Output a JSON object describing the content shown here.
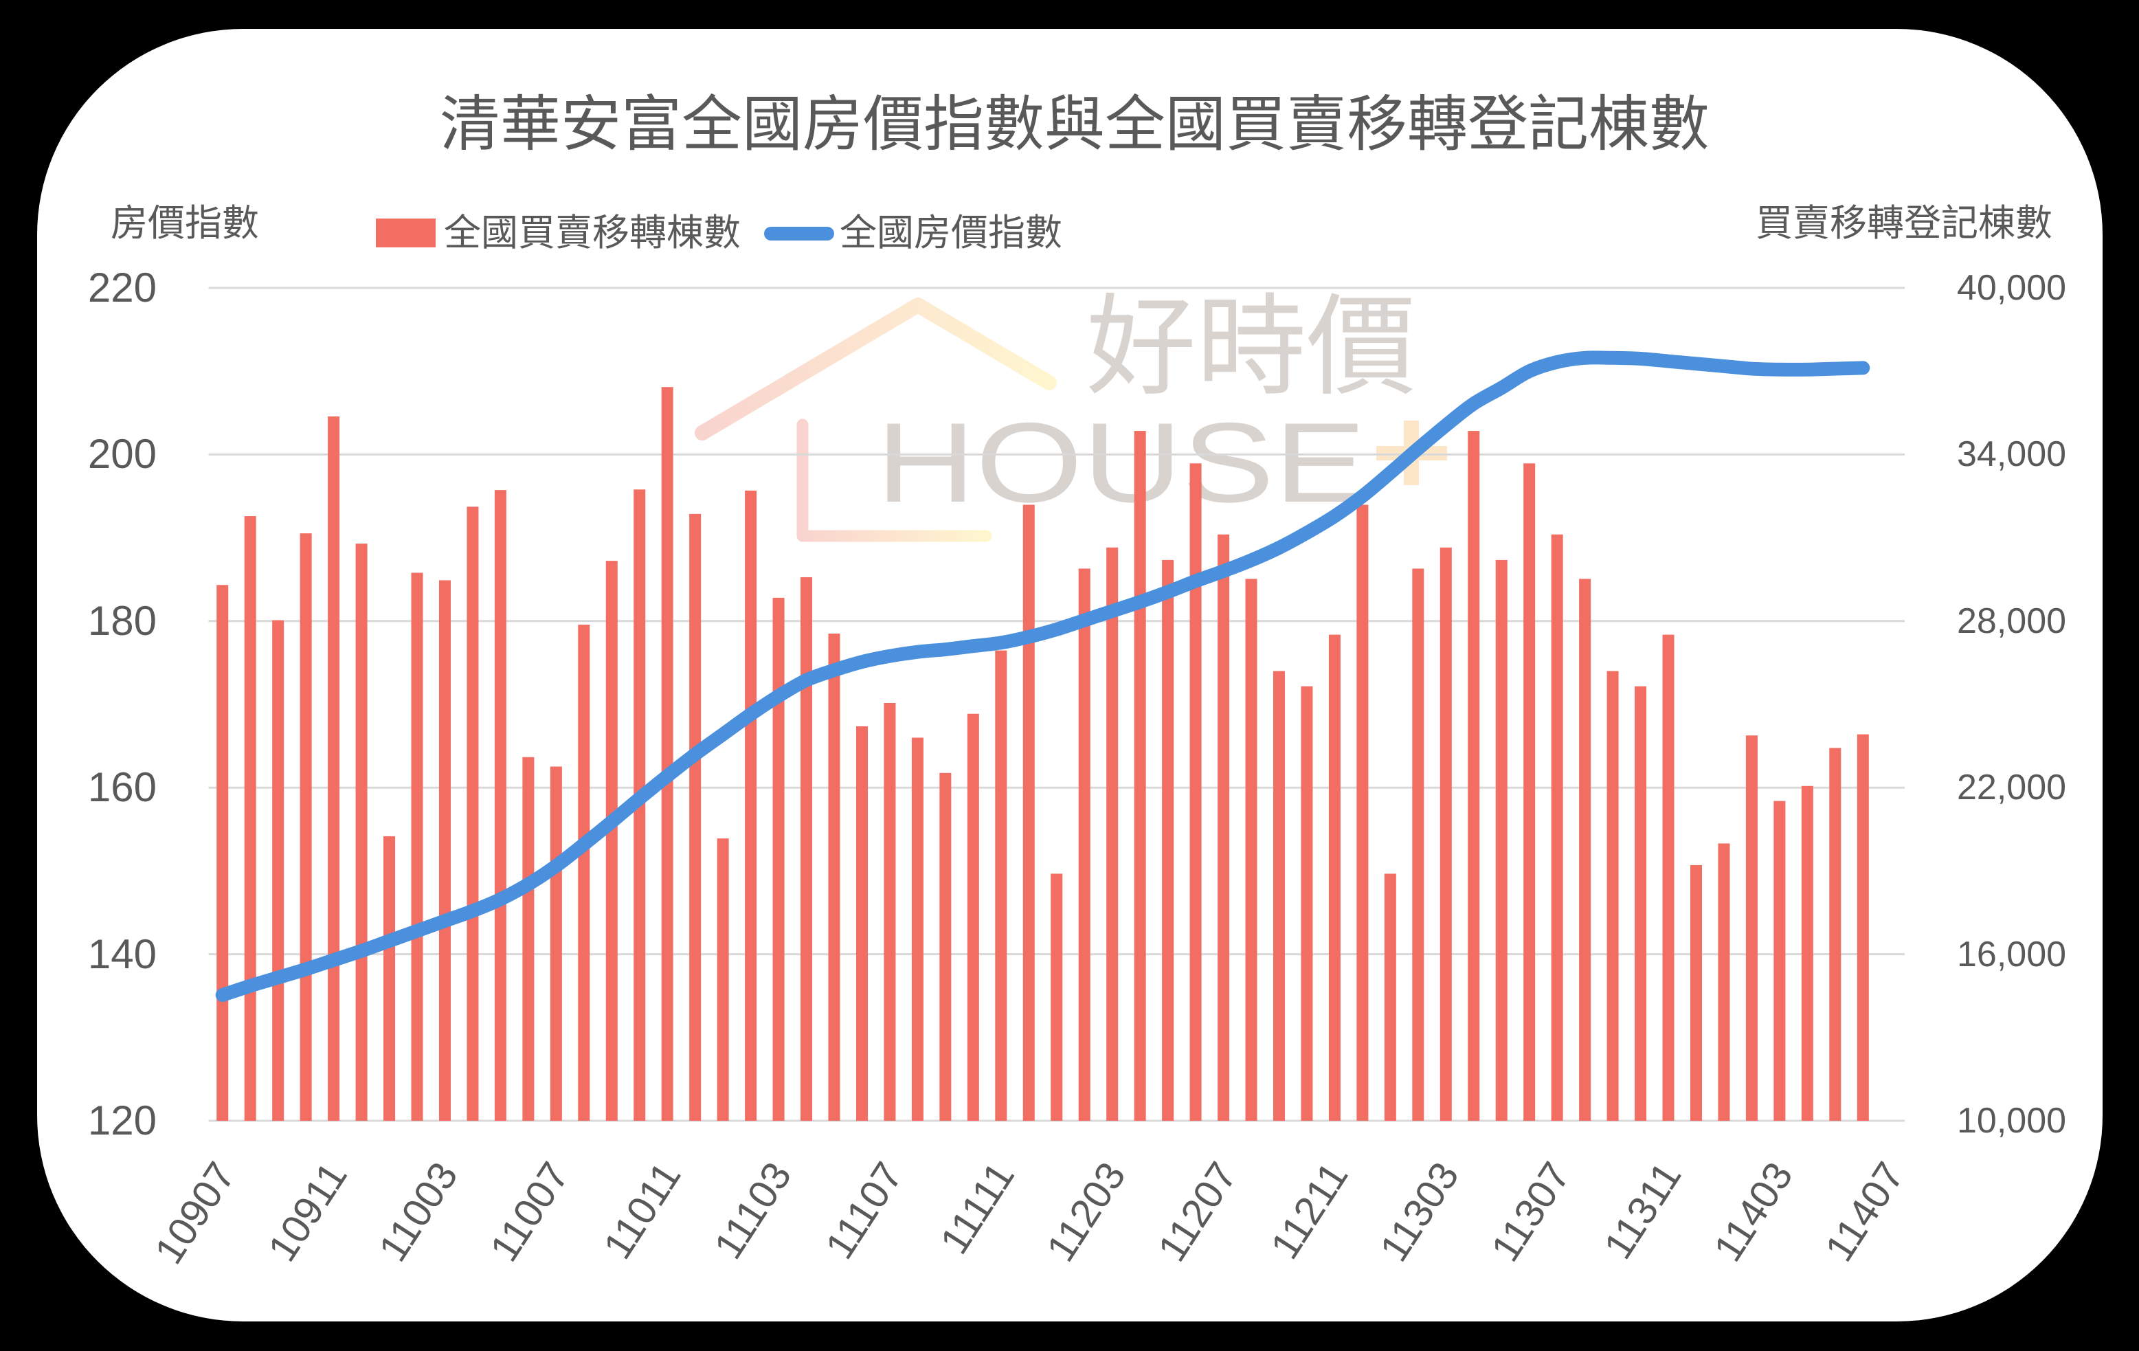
{
  "colors": {
    "background": "#000000",
    "card": "#FFFFFF",
    "text": "#595959",
    "gridline": "#D9D9D9",
    "bar": "#F26D62",
    "line": "#4A90DD",
    "watermark_text": "#D9D3CF",
    "watermark_gradient_start": "#F9D3CF",
    "watermark_gradient_end": "#FFF7CF",
    "watermark_plus": "#FDE6C8"
  },
  "watermark": {
    "text_cn": "好時價",
    "text_en": "HOUSE",
    "icons": [
      "house-roof-icon",
      "house-wall-icon",
      "plus-icon"
    ]
  },
  "chart_data": {
    "type": "bar",
    "title": "清華安富全國房價指數與全國買賣移轉登記棟數",
    "xlabel": "",
    "ylabel": "房價指數",
    "y2label": "買賣移轉登記棟數",
    "ylim": [
      120,
      220
    ],
    "y2lim": [
      10000,
      40000
    ],
    "grid": true,
    "legend_position": "top-left",
    "legend": [
      {
        "label": "全國買賣移轉棟數",
        "type": "bar",
        "color": "#F26D62"
      },
      {
        "label": "全國房價指數",
        "type": "line",
        "color": "#4A90DD"
      }
    ],
    "y_left": {
      "label": "房價指數",
      "range": [
        120,
        220
      ],
      "ticks": [
        "220",
        "200",
        "180",
        "160",
        "140",
        "120"
      ]
    },
    "y_right": {
      "label": "買賣移轉登記棟數",
      "range": [
        10000,
        40000
      ],
      "ticks": [
        "40,000",
        "34,000",
        "28,000",
        "22,000",
        "16,000",
        "10,000"
      ]
    },
    "x_tick_labels": [
      "10907",
      "10911",
      "11003",
      "11007",
      "11011",
      "11103",
      "11107",
      "11111",
      "11203",
      "11207",
      "11211",
      "11303",
      "11307",
      "11311",
      "11403",
      "11407"
    ],
    "categories": [
      "10907",
      "10908",
      "10909",
      "10910",
      "10911",
      "10912",
      "11001",
      "11002",
      "11003",
      "11004",
      "11005",
      "11006",
      "11007",
      "11008",
      "11009",
      "11010",
      "11011",
      "11012",
      "11101",
      "11102",
      "11103",
      "11104",
      "11105",
      "11106",
      "11107",
      "11108",
      "11109",
      "11110",
      "11111",
      "11112",
      "11201",
      "11202",
      "11203",
      "11204",
      "11205",
      "11206",
      "11207",
      "11208",
      "11209",
      "11210",
      "11211",
      "11212",
      "11301",
      "11302",
      "11303",
      "11304",
      "11305",
      "11306",
      "11307",
      "11308",
      "11309",
      "11310",
      "11311",
      "11312",
      "11401",
      "11402",
      "11403",
      "11404",
      "11405",
      "11406",
      "11407"
    ],
    "series": [
      {
        "name": "全國買賣移轉棟數",
        "type": "bar",
        "axis": "right",
        "values": [
          29300,
          31780,
          28030,
          31160,
          35370,
          30790,
          20250,
          29740,
          29470,
          32120,
          32720,
          23100,
          22760,
          27870,
          30170,
          32740,
          36430,
          31860,
          20170,
          32700,
          28840,
          29580,
          27550,
          24210,
          25050,
          23800,
          22530,
          24660,
          26940,
          32190,
          18900,
          29890,
          30650,
          34850,
          30200,
          33680,
          31120,
          29520,
          26200,
          25650,
          27510,
          32190,
          18900,
          29890,
          30650,
          34850,
          30200,
          33680,
          31120,
          29520,
          26200,
          25650,
          27510,
          19210,
          19990,
          23880,
          21520,
          22060,
          23430,
          23920,
          null
        ]
      },
      {
        "name": "全國房價指數",
        "type": "line",
        "axis": "left",
        "smoothed": true,
        "values": [
          135.1,
          136.2,
          137.2,
          138.2,
          139.3,
          140.4,
          141.6,
          142.8,
          144.0,
          145.2,
          146.6,
          148.4,
          150.6,
          153.2,
          155.9,
          158.7,
          161.4,
          164.0,
          166.4,
          168.8,
          171.0,
          172.9,
          174.1,
          175.1,
          175.8,
          176.3,
          176.6,
          177.0,
          177.4,
          178.1,
          179.0,
          180.1,
          181.2,
          182.3,
          183.5,
          184.8,
          186.0,
          187.3,
          188.8,
          190.6,
          192.6,
          195.0,
          197.8,
          200.7,
          203.5,
          206.1,
          208.0,
          210.0,
          211.1,
          211.6,
          211.6,
          211.5,
          211.2,
          210.9,
          210.6,
          210.3,
          210.2,
          210.2,
          210.3,
          210.4,
          null
        ]
      }
    ]
  }
}
